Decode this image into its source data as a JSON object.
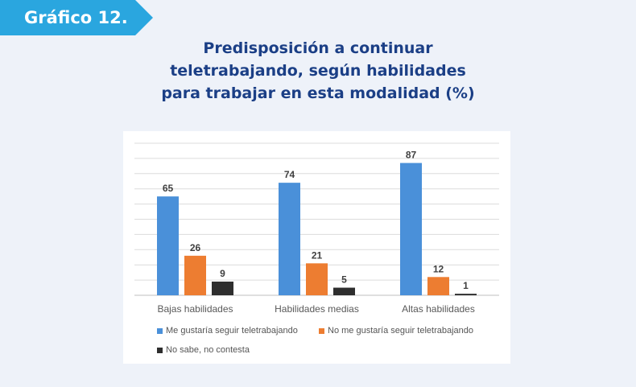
{
  "badge": {
    "label": "Gráfico 12.",
    "color": "#2aa6df"
  },
  "title": "Predisposición  a continuar\nteletrabajando, según habilidades\npara trabajar en esta modalidad (%)",
  "chart_data": {
    "type": "bar",
    "categories": [
      "Bajas habilidades",
      "Habilidades medias",
      "Altas habilidades"
    ],
    "series": [
      {
        "name": "Me gustaría seguir teletrabajando",
        "color": "#4a90d9",
        "values": [
          65,
          74,
          87
        ]
      },
      {
        "name": "No me gustaría seguir teletrabajando",
        "color": "#ed7d31",
        "values": [
          26,
          21,
          12
        ]
      },
      {
        "name": "No sabe, no contesta",
        "color": "#2e2e2e",
        "values": [
          9,
          5,
          1
        ]
      }
    ],
    "ylim": [
      0,
      100
    ],
    "grid": true,
    "legend_position": "bottom"
  }
}
